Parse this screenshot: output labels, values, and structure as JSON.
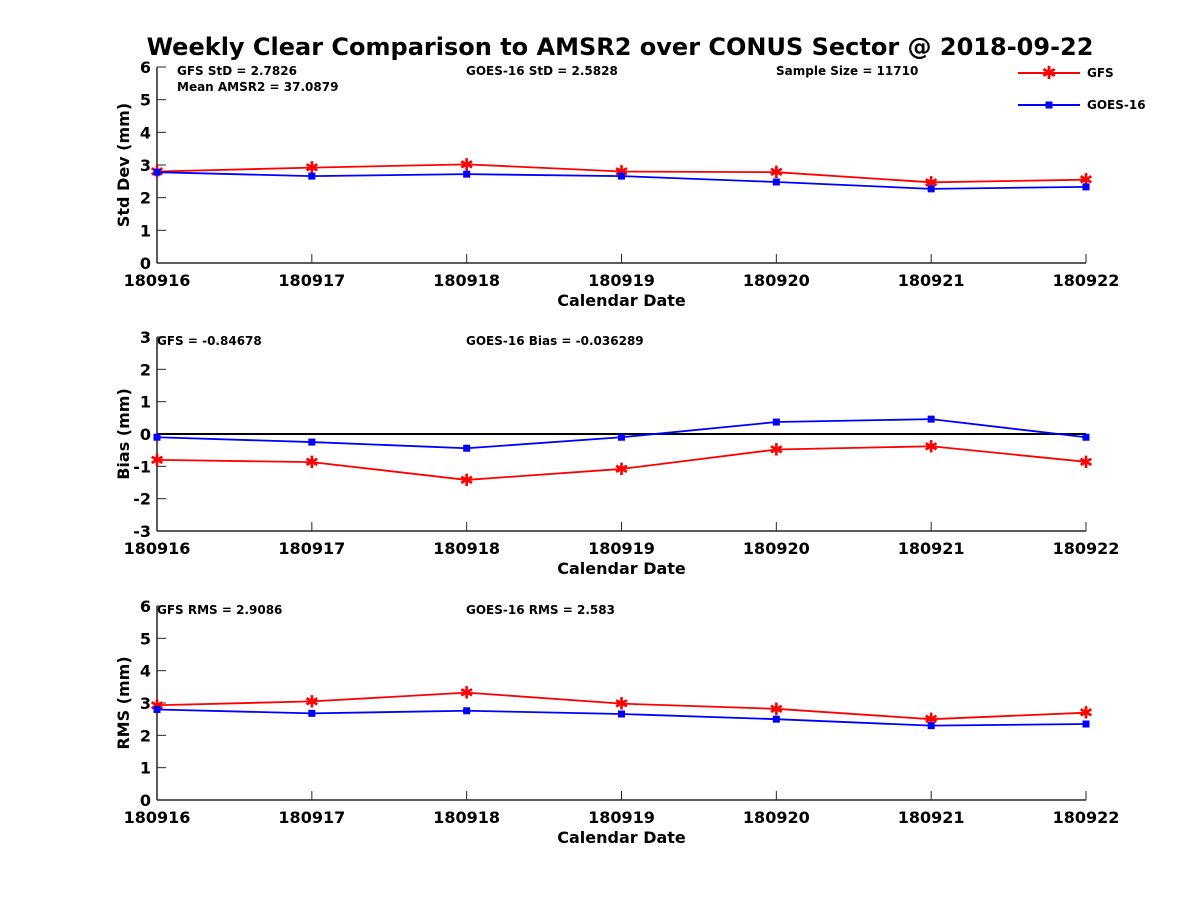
{
  "title": "Weekly Clear Comparison to AMSR2 over CONUS Sector @ 2018-09-22",
  "legend": {
    "placement": "top-right",
    "items": [
      {
        "label": "GFS",
        "color": "#ff0000",
        "marker": "asterisk"
      },
      {
        "label": "GOES-16",
        "color": "#0000ff",
        "marker": "square"
      }
    ]
  },
  "chart_data": [
    {
      "type": "line",
      "xlabel": "Calendar Date",
      "ylabel": "Std Dev (mm)",
      "categories": [
        "180916",
        "180917",
        "180918",
        "180919",
        "180920",
        "180921",
        "180922"
      ],
      "ylim": [
        0,
        6
      ],
      "yticks": [
        0,
        1,
        2,
        3,
        4,
        5,
        6
      ],
      "zero_line": false,
      "annotations": [
        "GFS StD = 2.7826",
        "Mean AMSR2 = 37.0879",
        "GOES-16 StD = 2.5828",
        "Sample Size = 11710"
      ],
      "series": [
        {
          "name": "GFS",
          "color": "#ff0000",
          "marker": "asterisk",
          "values": [
            2.8,
            2.92,
            3.02,
            2.8,
            2.78,
            2.47,
            2.55
          ]
        },
        {
          "name": "GOES-16",
          "color": "#0000ff",
          "marker": "square",
          "values": [
            2.78,
            2.66,
            2.72,
            2.66,
            2.48,
            2.27,
            2.33
          ]
        }
      ]
    },
    {
      "type": "line",
      "xlabel": "Calendar Date",
      "ylabel": "Bias (mm)",
      "categories": [
        "180916",
        "180917",
        "180918",
        "180919",
        "180920",
        "180921",
        "180922"
      ],
      "ylim": [
        -3,
        3
      ],
      "yticks": [
        -3,
        -2,
        -1,
        0,
        1,
        2,
        3
      ],
      "zero_line": true,
      "annotations": [
        "GFS = -0.84678",
        "GOES-16 Bias  = -0.036289"
      ],
      "series": [
        {
          "name": "GFS",
          "color": "#ff0000",
          "marker": "asterisk",
          "values": [
            -0.8,
            -0.87,
            -1.42,
            -1.08,
            -0.48,
            -0.38,
            -0.86
          ]
        },
        {
          "name": "GOES-16",
          "color": "#0000ff",
          "marker": "square",
          "values": [
            -0.1,
            -0.25,
            -0.44,
            -0.1,
            0.37,
            0.46,
            -0.1
          ]
        }
      ]
    },
    {
      "type": "line",
      "xlabel": "Calendar Date",
      "ylabel": "RMS (mm)",
      "categories": [
        "180916",
        "180917",
        "180918",
        "180919",
        "180920",
        "180921",
        "180922"
      ],
      "ylim": [
        0,
        6
      ],
      "yticks": [
        0,
        1,
        2,
        3,
        4,
        5,
        6
      ],
      "zero_line": false,
      "annotations": [
        "GFS RMS = 2.9086",
        "GOES-16 RMS = 2.583"
      ],
      "series": [
        {
          "name": "GFS",
          "color": "#ff0000",
          "marker": "asterisk",
          "values": [
            2.93,
            3.05,
            3.32,
            2.98,
            2.82,
            2.5,
            2.7
          ]
        },
        {
          "name": "GOES-16",
          "color": "#0000ff",
          "marker": "square",
          "values": [
            2.8,
            2.68,
            2.76,
            2.66,
            2.5,
            2.3,
            2.35
          ]
        }
      ]
    }
  ]
}
